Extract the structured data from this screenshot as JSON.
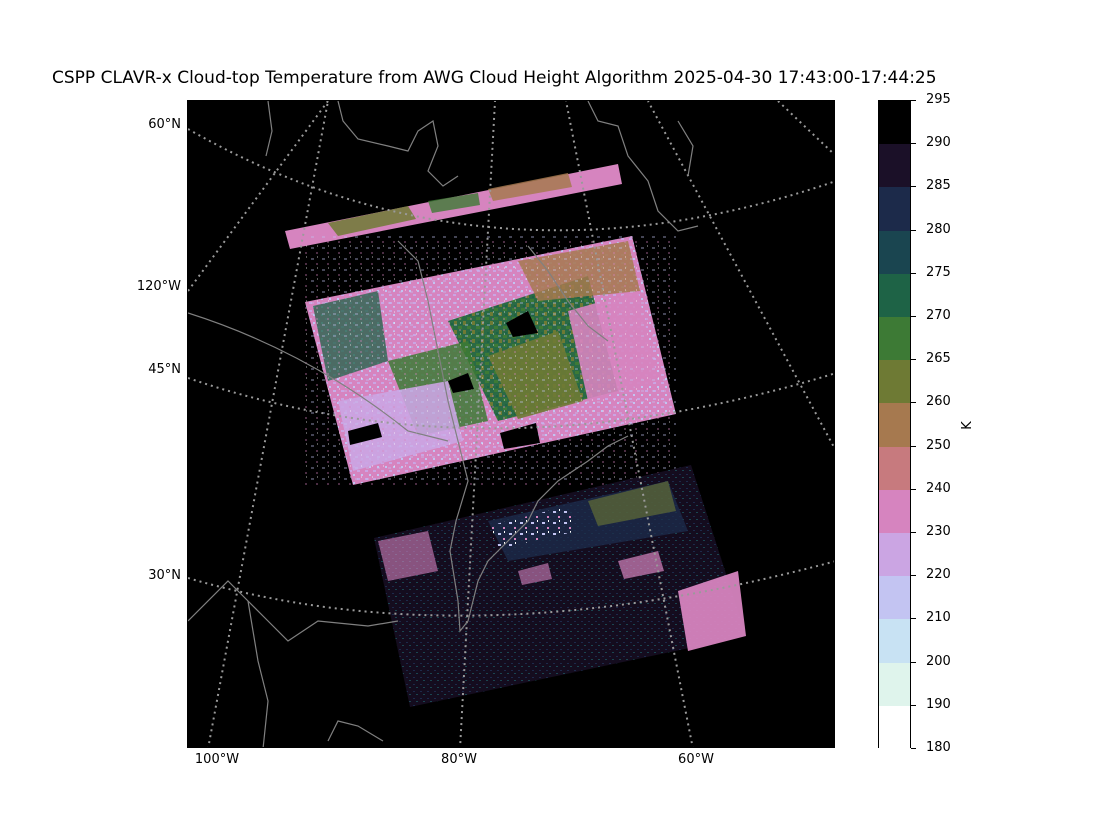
{
  "title": "CSPP CLAVR-x Cloud-top Temperature from AWG Cloud Height Algorithm 2025-04-30 17:43:00-17:44:25",
  "latitude_labels": [
    "60°N",
    "45°N",
    "30°N"
  ],
  "longitude_labels": [
    "120°W",
    "100°W",
    "80°W",
    "60°W"
  ],
  "colorbar": {
    "unit": "K",
    "ticks": [
      "295",
      "290",
      "285",
      "280",
      "275",
      "270",
      "265",
      "260",
      "250",
      "240",
      "230",
      "220",
      "210",
      "200",
      "190",
      "180"
    ],
    "colors": [
      "#000000",
      "#1b1028",
      "#1c2a4a",
      "#1a4550",
      "#1e6346",
      "#3d7a35",
      "#6e7a34",
      "#a6794f",
      "#c77a7e",
      "#d684bf",
      "#cba5e3",
      "#c3c4f2",
      "#c8e2f3",
      "#dff4ec",
      "#ffffff"
    ]
  },
  "colors": {
    "background": "#000000",
    "coastline": "#808080",
    "gridline": "#9a9a9a"
  }
}
